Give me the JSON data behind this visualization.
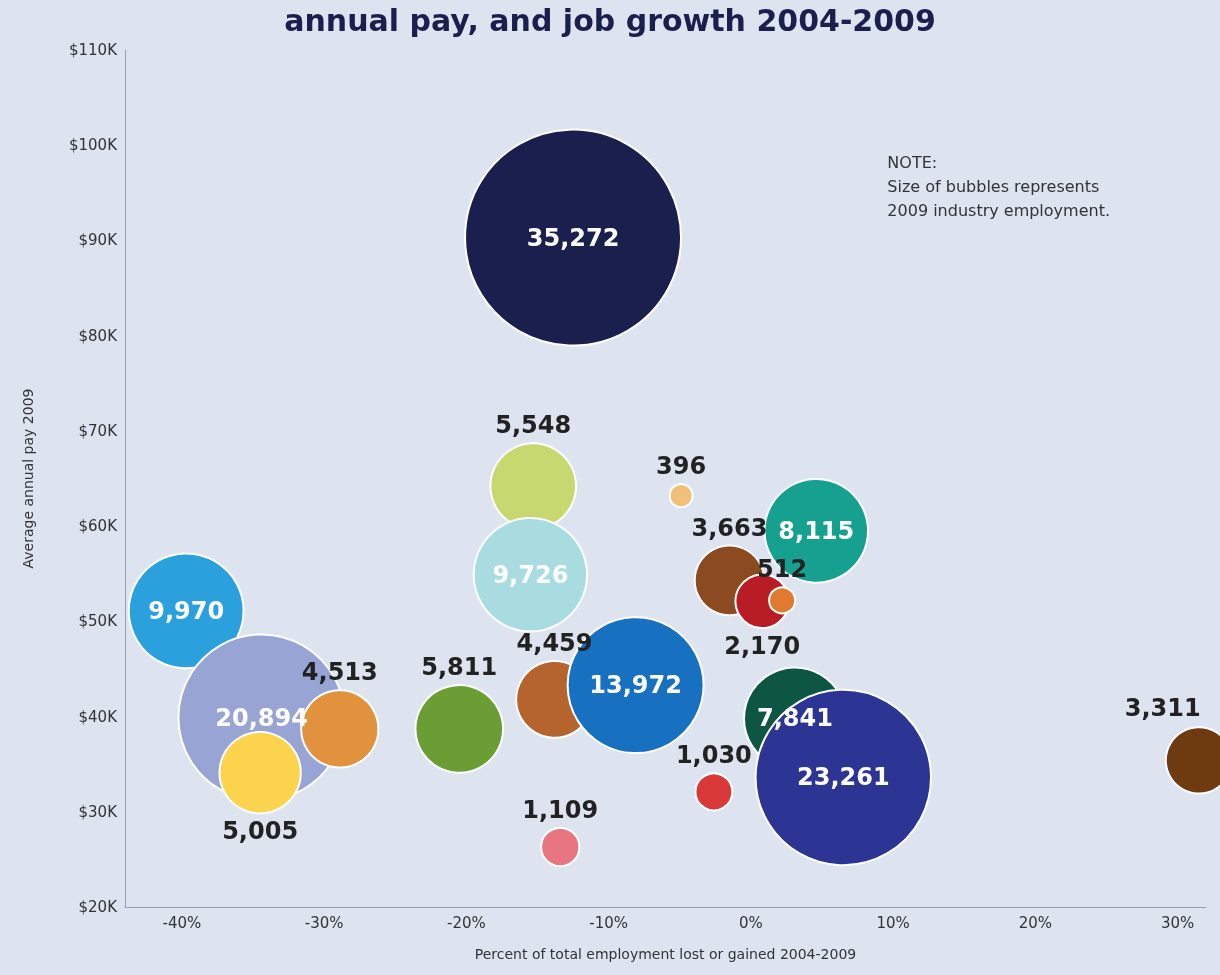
{
  "chart_data": {
    "type": "bubble",
    "title": "annual pay, and job growth 2004-2009",
    "xlabel": "Percent of total employment lost or gained 2004-2009",
    "ylabel": "Average annual pay 2009",
    "annotations": [
      "NOTE:\nSize of bubbles represents\n2009 industry employment."
    ],
    "x": [
      -12.5,
      -15.3,
      -4.9,
      -15.5,
      -1.5,
      4.6,
      0.8,
      2.2,
      -39.7,
      -34.4,
      -28.9,
      -34.5,
      -20.5,
      -13.8,
      -8.1,
      3.1,
      6.5,
      -2.6,
      -13.4,
      31.5
    ],
    "values": [
      90.3,
      64.2,
      63.2,
      54.9,
      54.3,
      59.5,
      52.1,
      52.2,
      51.1,
      39.9,
      38.7,
      34.1,
      38.7,
      41.8,
      43.3,
      39.8,
      33.6,
      32.1,
      26.3,
      35.4
    ],
    "sizes": [
      35272,
      5548,
      396,
      9726,
      3663,
      8115,
      2170,
      512,
      9970,
      20894,
      4513,
      5005,
      5811,
      4459,
      13972,
      7841,
      23261,
      1030,
      1109,
      3311
    ],
    "value_labels": [
      "35,272",
      "5,548",
      "396",
      "9,726",
      "3,663",
      "8,115",
      "2,170",
      "512",
      "9,970",
      "20,894",
      "4,513",
      "5,005",
      "5,811",
      "4,459",
      "13,972",
      "7,841",
      "23,261",
      "1,030",
      "1,109",
      "3,311"
    ],
    "colors": [
      "#1b1f4e",
      "#c8d870",
      "#f0c078",
      "#a8dce0",
      "#8b4a20",
      "#16a090",
      "#b81c24",
      "#e07a30",
      "#2aa0dc",
      "#98a4d4",
      "#e0923c",
      "#fcd34c",
      "#6a9e34",
      "#b4642c",
      "#1870c0",
      "#0e5644",
      "#2c3494",
      "#d83838",
      "#e87680",
      "#6e3a10"
    ],
    "xlim": [
      -44,
      32
    ],
    "xticks": [
      {
        "value": -40,
        "label": "-40%"
      },
      {
        "value": -30,
        "label": "-30%"
      },
      {
        "value": -20,
        "label": "-20%"
      },
      {
        "value": -10,
        "label": "-10%"
      },
      {
        "value": 0,
        "label": "0%"
      },
      {
        "value": 10,
        "label": "10%"
      },
      {
        "value": 20,
        "label": "20%"
      },
      {
        "value": 30,
        "label": "30%"
      }
    ],
    "ylim": [
      20,
      110
    ],
    "yticks": [
      {
        "value": 20,
        "label": "$20K"
      },
      {
        "value": 30,
        "label": "$30K"
      },
      {
        "value": 40,
        "label": "$40K"
      },
      {
        "value": 50,
        "label": "$50K"
      },
      {
        "value": 60,
        "label": "$60K"
      },
      {
        "value": 70,
        "label": "$70K"
      },
      {
        "value": 80,
        "label": "$80K"
      },
      {
        "value": 90,
        "label": "$90K"
      },
      {
        "value": 100,
        "label": "$100K"
      },
      {
        "value": 110,
        "label": "$110K"
      }
    ],
    "grid": false
  }
}
